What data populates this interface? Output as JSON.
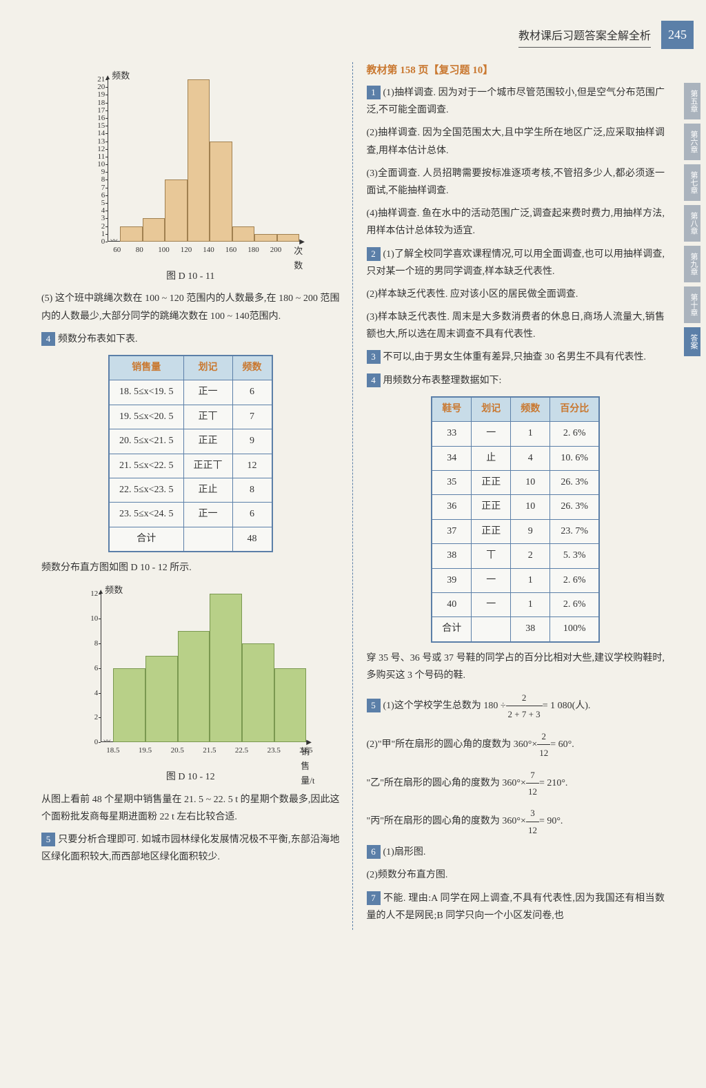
{
  "header": {
    "title": "教材课后习题答案全解全析",
    "page_num": "245"
  },
  "side_tabs": [
    "第五章",
    "第六章",
    "第七章",
    "第八章",
    "第九章",
    "第十章",
    "答案"
  ],
  "chart1": {
    "type": "bar",
    "ylabel": "频数",
    "xlabel": "次数",
    "y_ticks": [
      0,
      1,
      2,
      3,
      4,
      5,
      6,
      7,
      8,
      9,
      10,
      11,
      12,
      13,
      14,
      15,
      16,
      17,
      18,
      19,
      20,
      21
    ],
    "x_ticks": [
      60,
      80,
      100,
      120,
      140,
      160,
      180,
      200
    ],
    "values": [
      2,
      3,
      8,
      21,
      13,
      2,
      1,
      1
    ],
    "bar_color": "#e8c898",
    "border_color": "#a08050",
    "grid_color": "#999",
    "caption": "图 D 10 - 11"
  },
  "text_5": "(5) 这个班中跳绳次数在 100 ~ 120 范围内的人数最多,在 180 ~ 200 范围内的人数最少,大部分同学的跳绳次数在 100 ~ 140范围内.",
  "q4_intro": "频数分布表如下表.",
  "table1": {
    "headers": [
      "销售量",
      "划记",
      "频数"
    ],
    "rows": [
      [
        "18. 5≤x<19. 5",
        "正一",
        "6"
      ],
      [
        "19. 5≤x<20. 5",
        "正丅",
        "7"
      ],
      [
        "20. 5≤x<21. 5",
        "正正",
        "9"
      ],
      [
        "21. 5≤x<22. 5",
        "正正丅",
        "12"
      ],
      [
        "22. 5≤x<23. 5",
        "正止",
        "8"
      ],
      [
        "23. 5≤x<24. 5",
        "正一",
        "6"
      ],
      [
        "合计",
        "",
        "48"
      ]
    ]
  },
  "chart2_intro": "频数分布直方图如图 D 10 - 12 所示.",
  "chart2": {
    "type": "bar",
    "ylabel": "频数",
    "xlabel": "销售量/t",
    "y_ticks": [
      0,
      2,
      4,
      6,
      8,
      10,
      12
    ],
    "x_ticks": [
      "18.5",
      "19.5",
      "20.5",
      "21.5",
      "22.5",
      "23.5",
      "24.5"
    ],
    "values": [
      6,
      7,
      9,
      12,
      8,
      6
    ],
    "bar_color": "#b8d088",
    "border_color": "#7a9850",
    "caption": "图 D 10 - 12"
  },
  "text_after_chart2": "从图上看前 48 个星期中销售量在 21. 5 ~ 22. 5 t 的星期个数最多,因此这个面粉批发商每星期进面粉 22 t 左右比较合适.",
  "q5_text": "只要分析合理即可. 如城市园林绿化发展情况极不平衡,东部沿海地区绿化面积较大,而西部地区绿化面积较少.",
  "right_title": "教材第 158 页【复习题 10】",
  "r1_1": "(1)抽样调查. 因为对于一个城市尽管范围较小,但是空气分布范围广泛,不可能全面调查.",
  "r1_2": "(2)抽样调查. 因为全国范围太大,且中学生所在地区广泛,应采取抽样调查,用样本估计总体.",
  "r1_3": "(3)全面调查. 人员招聘需要按标准逐项考核,不管招多少人,都必须逐一面试,不能抽样调查.",
  "r1_4": "(4)抽样调查. 鱼在水中的活动范围广泛,调查起来费时费力,用抽样方法,用样本估计总体较为适宜.",
  "r2_1": "(1)了解全校同学喜欢课程情况,可以用全面调查,也可以用抽样调查,只对某一个班的男同学调查,样本缺乏代表性.",
  "r2_2": "(2)样本缺乏代表性. 应对该小区的居民做全面调查.",
  "r2_3": "(3)样本缺乏代表性. 周末是大多数消费者的休息日,商场人流量大,销售额也大,所以选在周末调查不具有代表性.",
  "r3": "不可以,由于男女生体重有差异,只抽查 30 名男生不具有代表性.",
  "r4_intro": "用频数分布表整理数据如下:",
  "table2": {
    "headers": [
      "鞋号",
      "划记",
      "频数",
      "百分比"
    ],
    "rows": [
      [
        "33",
        "一",
        "1",
        "2. 6%"
      ],
      [
        "34",
        "止",
        "4",
        "10. 6%"
      ],
      [
        "35",
        "正正",
        "10",
        "26. 3%"
      ],
      [
        "36",
        "正正",
        "10",
        "26. 3%"
      ],
      [
        "37",
        "正正",
        "9",
        "23. 7%"
      ],
      [
        "38",
        "丅",
        "2",
        "5. 3%"
      ],
      [
        "39",
        "一",
        "1",
        "2. 6%"
      ],
      [
        "40",
        "一",
        "1",
        "2. 6%"
      ],
      [
        "合计",
        "",
        "38",
        "100%"
      ]
    ]
  },
  "r4_after": "穿 35 号、36 号或 37 号鞋的同学占的百分比相对大些,建议学校购鞋时,多购买这 3 个号码的鞋.",
  "r5_1a": "(1)这个学校学生总数为 180 ÷",
  "r5_1_frac": {
    "num": "2",
    "den": "2 + 7 + 3"
  },
  "r5_1b": "= 1 080(人).",
  "r5_2a": "(2)\"甲\"所在扇形的圆心角的度数为 360°×",
  "r5_2_frac": {
    "num": "2",
    "den": "12"
  },
  "r5_2b": "= 60°.",
  "r5_3a": "\"乙\"所在扇形的圆心角的度数为 360°×",
  "r5_3_frac": {
    "num": "7",
    "den": "12"
  },
  "r5_3b": "= 210°.",
  "r5_4a": "\"丙\"所在扇形的圆心角的度数为 360°×",
  "r5_4_frac": {
    "num": "3",
    "den": "12"
  },
  "r5_4b": "= 90°.",
  "r6_1": "(1)扇形图.",
  "r6_2": "(2)频数分布直方图.",
  "r7": "不能. 理由:A 同学在网上调查,不具有代表性,因为我国还有相当数量的人不是网民;B 同学只向一个小区发问卷,也"
}
